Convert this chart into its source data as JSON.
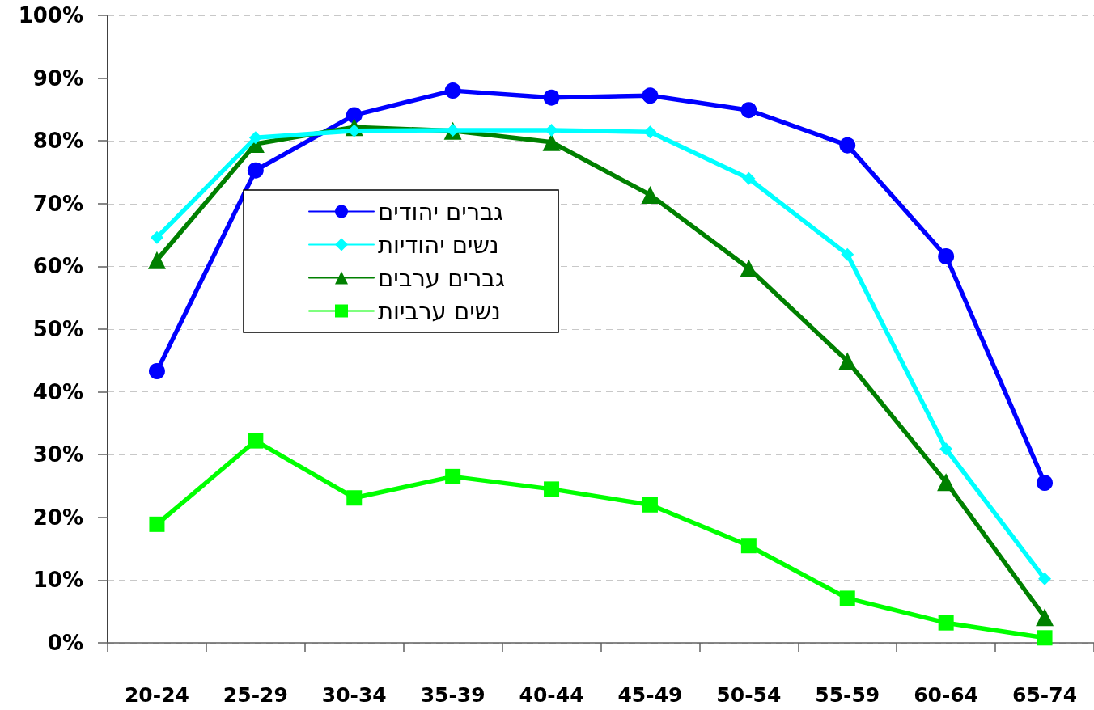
{
  "chart_data": {
    "type": "line",
    "categories": [
      "20-24",
      "25-29",
      "30-34",
      "35-39",
      "40-44",
      "45-49",
      "50-54",
      "55-59",
      "60-64",
      "65-74"
    ],
    "series": [
      {
        "name": "גברים יהודים",
        "color": "#0000ff",
        "marker": "circle",
        "values": [
          43.3,
          75.3,
          84.1,
          88.0,
          86.9,
          87.2,
          84.9,
          79.3,
          61.6,
          25.5
        ]
      },
      {
        "name": "נשים יהודיות",
        "color": "#00ffff",
        "marker": "diamond",
        "values": [
          64.6,
          80.5,
          81.6,
          81.7,
          81.7,
          81.4,
          74.0,
          61.9,
          30.9,
          10.2
        ]
      },
      {
        "name": "גברים ערבים",
        "color": "#008000",
        "marker": "triangle",
        "values": [
          61.0,
          79.5,
          82.2,
          81.6,
          79.8,
          71.4,
          59.7,
          44.9,
          25.6,
          4.1
        ]
      },
      {
        "name": "נשים ערביות",
        "color": "#00ff00",
        "marker": "square",
        "values": [
          18.9,
          32.2,
          23.1,
          26.5,
          24.5,
          22.0,
          15.5,
          7.1,
          3.2,
          0.8
        ]
      }
    ],
    "ylim": [
      0,
      100
    ],
    "yticks": [
      {
        "value": 0,
        "label": "0%"
      },
      {
        "value": 10,
        "label": "10%"
      },
      {
        "value": 20,
        "label": "20%"
      },
      {
        "value": 30,
        "label": "30%"
      },
      {
        "value": 40,
        "label": "40%"
      },
      {
        "value": 50,
        "label": "50%"
      },
      {
        "value": 60,
        "label": "60%"
      },
      {
        "value": 70,
        "label": "70%"
      },
      {
        "value": 80,
        "label": "80%"
      },
      {
        "value": 90,
        "label": "90%"
      },
      {
        "value": 100,
        "label": "100%"
      }
    ],
    "grid": "y",
    "legend": "left",
    "line_style": "solid"
  }
}
